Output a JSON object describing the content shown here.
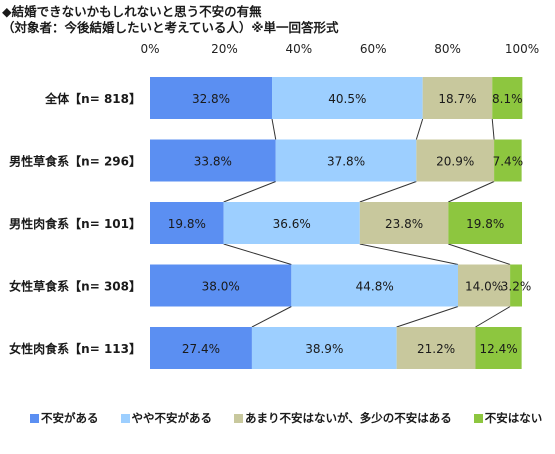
{
  "colors": {
    "series": [
      "#5b8ff2",
      "#9dcfff",
      "#c8c89d",
      "#8dc63f"
    ],
    "connector": "#333333"
  },
  "chart_data": {
    "type": "bar",
    "orientation": "horizontal",
    "stacked": true,
    "title": "◆結婚できないかもしれないと思う不安の有無",
    "subtitle": "（対象者：今後結婚したいと考えている人）※単一回答形式",
    "xlim": [
      0,
      100
    ],
    "x_ticks": [
      "0%",
      "20%",
      "40%",
      "60%",
      "80%",
      "100%"
    ],
    "categories": [
      "全体【n= 818】",
      "男性草食系【n= 296】",
      "男性肉食系【n= 101】",
      "女性草食系【n= 308】",
      "女性肉食系【n= 113】"
    ],
    "series": [
      {
        "name": "不安がある",
        "values": [
          32.8,
          33.8,
          19.8,
          38.0,
          27.4
        ],
        "labels": [
          "32.8%",
          "33.8%",
          "19.8%",
          "38.0%",
          "27.4%"
        ]
      },
      {
        "name": "やや不安がある",
        "values": [
          40.5,
          37.8,
          36.6,
          44.8,
          38.9
        ],
        "labels": [
          "40.5%",
          "37.8%",
          "36.6%",
          "44.8%",
          "38.9%"
        ]
      },
      {
        "name": "あまり不安はないが、多少の不安はある",
        "values": [
          18.7,
          20.9,
          23.8,
          14.0,
          21.2
        ],
        "labels": [
          "18.7%",
          "20.9%",
          "23.8%",
          "14.0%",
          "21.2%"
        ]
      },
      {
        "name": "不安はない",
        "values": [
          8.1,
          7.4,
          19.8,
          3.2,
          12.4
        ],
        "labels": [
          "8.1%",
          "7.4%",
          "19.8%",
          "3.2%",
          "12.4%"
        ]
      }
    ],
    "legend_position": "bottom",
    "grid": false,
    "series_connectors": true
  }
}
